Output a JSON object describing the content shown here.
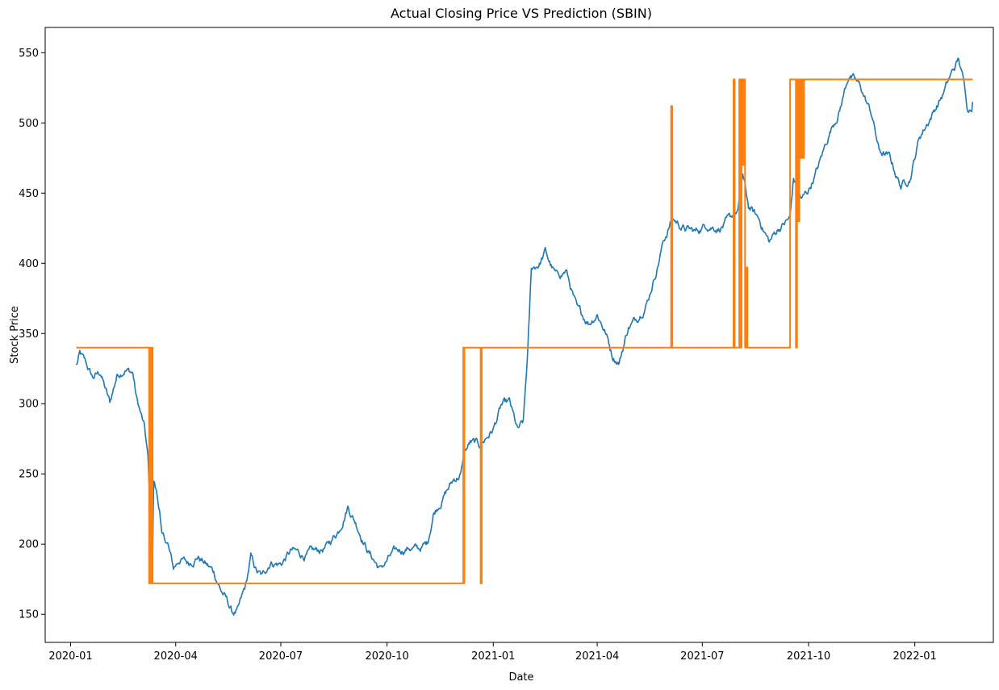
{
  "chart_data": {
    "type": "line",
    "title": "Actual Closing Price VS Prediction (SBIN)",
    "xlabel": "Date",
    "ylabel": "Stock Price",
    "xlim": [
      "2019-12-10",
      "2022-03-10"
    ],
    "ylim": [
      130,
      568
    ],
    "grid": false,
    "legend": "none",
    "x_ticks": [
      "2020-01",
      "2020-04",
      "2020-07",
      "2020-10",
      "2021-01",
      "2021-04",
      "2021-07",
      "2021-10",
      "2022-01"
    ],
    "y_ticks": [
      150,
      200,
      250,
      300,
      350,
      400,
      450,
      500,
      550
    ],
    "series": [
      {
        "color": "#1f77b4",
        "style": "noisy",
        "points": [
          [
            "2020-01-06",
            327
          ],
          [
            "2020-01-09",
            335
          ],
          [
            "2020-01-14",
            328
          ],
          [
            "2020-01-20",
            318
          ],
          [
            "2020-01-27",
            322
          ],
          [
            "2020-02-01",
            308
          ],
          [
            "2020-02-04",
            300
          ],
          [
            "2020-02-10",
            320
          ],
          [
            "2020-02-17",
            326
          ],
          [
            "2020-02-24",
            322
          ],
          [
            "2020-02-27",
            304
          ],
          [
            "2020-03-02",
            292
          ],
          [
            "2020-03-05",
            282
          ],
          [
            "2020-03-08",
            260
          ],
          [
            "2020-03-10",
            215
          ],
          [
            "2020-03-12",
            190
          ],
          [
            "2020-03-13",
            245
          ],
          [
            "2020-03-15",
            238
          ],
          [
            "2020-03-18",
            225
          ],
          [
            "2020-03-20",
            205
          ],
          [
            "2020-03-25",
            200
          ],
          [
            "2020-03-30",
            182
          ],
          [
            "2020-04-05",
            190
          ],
          [
            "2020-04-12",
            186
          ],
          [
            "2020-04-20",
            192
          ],
          [
            "2020-04-28",
            185
          ],
          [
            "2020-05-04",
            180
          ],
          [
            "2020-05-10",
            168
          ],
          [
            "2020-05-15",
            160
          ],
          [
            "2020-05-20",
            151
          ],
          [
            "2020-05-25",
            152
          ],
          [
            "2020-06-01",
            170
          ],
          [
            "2020-06-05",
            190
          ],
          [
            "2020-06-10",
            180
          ],
          [
            "2020-06-15",
            176
          ],
          [
            "2020-06-22",
            188
          ],
          [
            "2020-07-01",
            186
          ],
          [
            "2020-07-10",
            195
          ],
          [
            "2020-07-20",
            192
          ],
          [
            "2020-08-01",
            194
          ],
          [
            "2020-08-10",
            198
          ],
          [
            "2020-08-20",
            210
          ],
          [
            "2020-08-28",
            228
          ],
          [
            "2020-09-05",
            214
          ],
          [
            "2020-09-15",
            195
          ],
          [
            "2020-09-25",
            182
          ],
          [
            "2020-10-05",
            192
          ],
          [
            "2020-10-12",
            195
          ],
          [
            "2020-10-20",
            198
          ],
          [
            "2020-10-28",
            196
          ],
          [
            "2020-11-05",
            200
          ],
          [
            "2020-11-10",
            222
          ],
          [
            "2020-11-20",
            236
          ],
          [
            "2020-11-28",
            246
          ],
          [
            "2020-12-04",
            250
          ],
          [
            "2020-12-07",
            265
          ],
          [
            "2020-12-12",
            272
          ],
          [
            "2020-12-20",
            270
          ],
          [
            "2020-12-25",
            275
          ],
          [
            "2021-01-01",
            282
          ],
          [
            "2021-01-08",
            298
          ],
          [
            "2021-01-15",
            300
          ],
          [
            "2021-01-22",
            280
          ],
          [
            "2021-01-27",
            285
          ],
          [
            "2021-01-31",
            338
          ],
          [
            "2021-02-03",
            395
          ],
          [
            "2021-02-10",
            400
          ],
          [
            "2021-02-15",
            408
          ],
          [
            "2021-02-20",
            398
          ],
          [
            "2021-02-25",
            390
          ],
          [
            "2021-03-05",
            395
          ],
          [
            "2021-03-15",
            365
          ],
          [
            "2021-03-25",
            358
          ],
          [
            "2021-04-01",
            365
          ],
          [
            "2021-04-08",
            352
          ],
          [
            "2021-04-14",
            335
          ],
          [
            "2021-04-20",
            330
          ],
          [
            "2021-04-28",
            355
          ],
          [
            "2021-05-05",
            360
          ],
          [
            "2021-05-15",
            375
          ],
          [
            "2021-05-22",
            395
          ],
          [
            "2021-05-28",
            415
          ],
          [
            "2021-06-05",
            432
          ],
          [
            "2021-06-15",
            425
          ],
          [
            "2021-06-25",
            422
          ],
          [
            "2021-07-05",
            428
          ],
          [
            "2021-07-15",
            426
          ],
          [
            "2021-07-25",
            430
          ],
          [
            "2021-08-01",
            438
          ],
          [
            "2021-08-05",
            462
          ],
          [
            "2021-08-10",
            440
          ],
          [
            "2021-08-20",
            430
          ],
          [
            "2021-08-28",
            415
          ],
          [
            "2021-09-05",
            425
          ],
          [
            "2021-09-15",
            432
          ],
          [
            "2021-09-18",
            460
          ],
          [
            "2021-09-25",
            445
          ],
          [
            "2021-10-01",
            452
          ],
          [
            "2021-10-10",
            470
          ],
          [
            "2021-10-20",
            495
          ],
          [
            "2021-10-28",
            510
          ],
          [
            "2021-11-05",
            535
          ],
          [
            "2021-11-15",
            525
          ],
          [
            "2021-11-25",
            505
          ],
          [
            "2021-12-01",
            480
          ],
          [
            "2021-12-10",
            475
          ],
          [
            "2021-12-20",
            455
          ],
          [
            "2021-12-28",
            462
          ],
          [
            "2022-01-05",
            490
          ],
          [
            "2022-01-15",
            505
          ],
          [
            "2022-01-25",
            520
          ],
          [
            "2022-02-02",
            535
          ],
          [
            "2022-02-08",
            545
          ],
          [
            "2022-02-12",
            530
          ],
          [
            "2022-02-16",
            510
          ],
          [
            "2022-02-20",
            515
          ]
        ]
      },
      {
        "color": "#ff7f0e",
        "style": "step",
        "points": [
          [
            "2020-01-06",
            340
          ],
          [
            "2020-03-09",
            340
          ],
          [
            "2020-03-09",
            172
          ],
          [
            "2020-03-09",
            340
          ],
          [
            "2020-03-10",
            340
          ],
          [
            "2020-03-10",
            172
          ],
          [
            "2020-03-11",
            172
          ],
          [
            "2020-03-11",
            340
          ],
          [
            "2020-03-12",
            340
          ],
          [
            "2020-03-12",
            172
          ],
          [
            "2020-12-06",
            172
          ],
          [
            "2020-12-06",
            340
          ],
          [
            "2020-12-07",
            340
          ],
          [
            "2020-12-07",
            172
          ],
          [
            "2020-12-07",
            340
          ],
          [
            "2020-12-21",
            340
          ],
          [
            "2020-12-21",
            172
          ],
          [
            "2020-12-22",
            172
          ],
          [
            "2020-12-22",
            340
          ],
          [
            "2021-06-04",
            340
          ],
          [
            "2021-06-04",
            512
          ],
          [
            "2021-06-05",
            512
          ],
          [
            "2021-06-05",
            340
          ],
          [
            "2021-07-28",
            340
          ],
          [
            "2021-07-28",
            531
          ],
          [
            "2021-07-29",
            531
          ],
          [
            "2021-07-29",
            340
          ],
          [
            "2021-08-02",
            340
          ],
          [
            "2021-08-02",
            531
          ],
          [
            "2021-08-03",
            531
          ],
          [
            "2021-08-03",
            340
          ],
          [
            "2021-08-04",
            340
          ],
          [
            "2021-08-04",
            531
          ],
          [
            "2021-08-05",
            531
          ],
          [
            "2021-08-05",
            470
          ],
          [
            "2021-08-06",
            470
          ],
          [
            "2021-08-06",
            531
          ],
          [
            "2021-08-07",
            531
          ],
          [
            "2021-08-07",
            340
          ],
          [
            "2021-08-08",
            340
          ],
          [
            "2021-08-08",
            397
          ],
          [
            "2021-08-09",
            397
          ],
          [
            "2021-08-09",
            340
          ],
          [
            "2021-09-15",
            340
          ],
          [
            "2021-09-15",
            531
          ],
          [
            "2021-09-20",
            531
          ],
          [
            "2021-09-20",
            340
          ],
          [
            "2021-09-21",
            340
          ],
          [
            "2021-09-21",
            531
          ],
          [
            "2021-09-22",
            531
          ],
          [
            "2021-09-22",
            430
          ],
          [
            "2021-09-23",
            430
          ],
          [
            "2021-09-23",
            531
          ],
          [
            "2021-09-24",
            531
          ],
          [
            "2021-09-24",
            475
          ],
          [
            "2021-09-25",
            475
          ],
          [
            "2021-09-25",
            531
          ],
          [
            "2021-09-26",
            531
          ],
          [
            "2021-09-26",
            475
          ],
          [
            "2021-09-27",
            475
          ],
          [
            "2021-09-27",
            531
          ],
          [
            "2022-02-20",
            531
          ]
        ]
      }
    ]
  }
}
